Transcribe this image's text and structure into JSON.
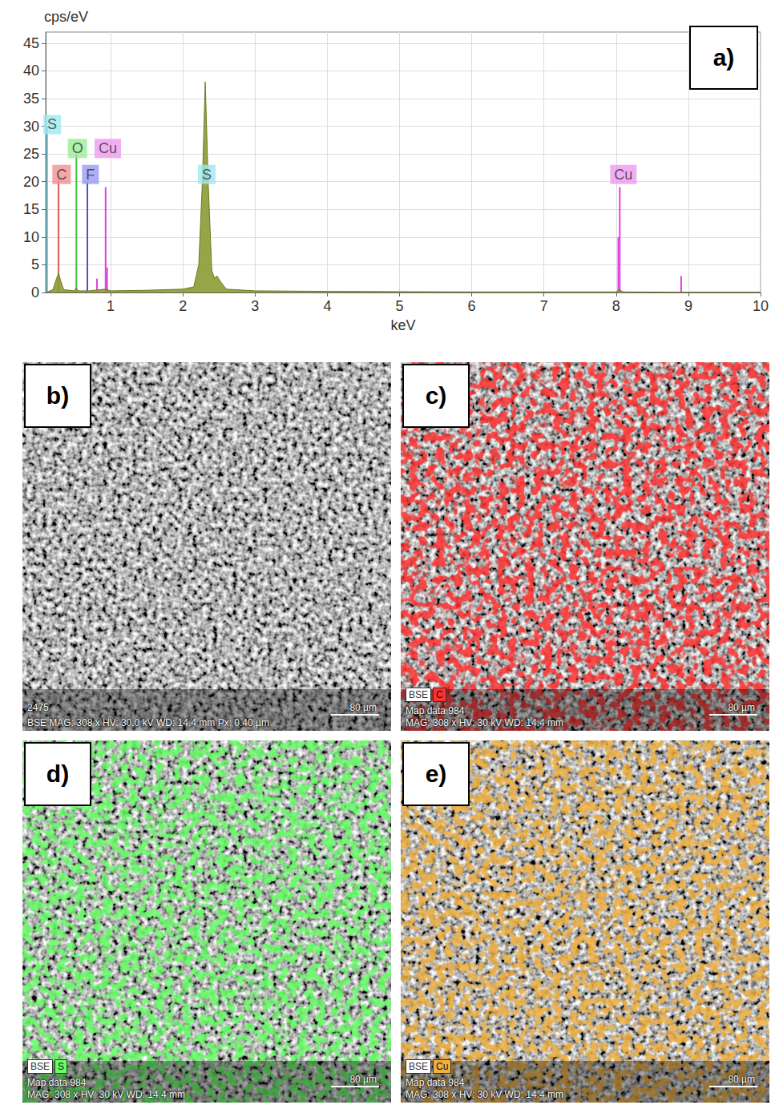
{
  "chart_data": {
    "type": "line",
    "panel_label": "a)",
    "x_label": "keV",
    "y_label": "cps/eV",
    "color": "#8c9b34",
    "x": [
      0.1,
      0.2,
      0.25,
      0.28,
      0.31,
      0.35,
      0.5,
      0.52,
      0.55,
      0.7,
      0.93,
      1.0,
      1.5,
      2.0,
      2.15,
      2.22,
      2.27,
      2.31,
      2.35,
      2.4,
      2.44,
      2.47,
      2.52,
      2.6,
      3.0,
      4.0,
      5.0,
      6.0,
      7.0,
      8.0,
      8.04,
      8.1,
      9.0,
      10.0
    ],
    "values": [
      0,
      0.5,
      2.5,
      3.5,
      2,
      0.5,
      0.3,
      0.8,
      0.3,
      0.3,
      0.6,
      0.3,
      0.4,
      0.6,
      1,
      5,
      20,
      38,
      20,
      4,
      2.5,
      3,
      2,
      0.6,
      0.3,
      0.2,
      0.15,
      0.1,
      0.1,
      0.1,
      0.5,
      0.1,
      0.05,
      0.05
    ],
    "line_markers": [
      {
        "x": 0.12,
        "y": 30,
        "color": "#5cc8d8"
      },
      {
        "x": 0.277,
        "y": 20.5,
        "color": "#e05858"
      },
      {
        "x": 0.525,
        "y": 25,
        "color": "#3cc03c"
      },
      {
        "x": 0.677,
        "y": 20,
        "color": "#5050d0"
      },
      {
        "x": 0.81,
        "y": 2.5,
        "color": "#e040e0"
      },
      {
        "x": 0.93,
        "y": 19,
        "color": "#e040e0"
      },
      {
        "x": 0.95,
        "y": 4.5,
        "color": "#e040e0"
      },
      {
        "x": 8.03,
        "y": 10,
        "color": "#e040e0"
      },
      {
        "x": 8.05,
        "y": 19,
        "color": "#e040e0"
      },
      {
        "x": 8.9,
        "y": 3,
        "color": "#e040e0"
      }
    ],
    "annotations": [
      {
        "text": "S",
        "x": 0.19,
        "y": 30.3,
        "color": "#9ee8f2"
      },
      {
        "text": "C",
        "x": 0.32,
        "y": 21.3,
        "color": "#f29090"
      },
      {
        "text": "O",
        "x": 0.54,
        "y": 26,
        "color": "#98ee98"
      },
      {
        "text": "F",
        "x": 0.72,
        "y": 21.3,
        "color": "#9a9af2"
      },
      {
        "text": "Cu",
        "x": 0.96,
        "y": 26,
        "color": "#f09af0"
      },
      {
        "text": "S",
        "x": 2.33,
        "y": 21.3,
        "color": "#9ee8f2"
      },
      {
        "text": "Cu",
        "x": 8.1,
        "y": 21.3,
        "color": "#f09af0"
      }
    ],
    "xlim": [
      0.1,
      10
    ],
    "xticks": [
      1,
      2,
      3,
      4,
      5,
      6,
      7,
      8,
      9,
      10
    ],
    "ylim": [
      0,
      47
    ],
    "yticks": [
      0,
      5,
      10,
      15,
      20,
      25,
      30,
      35,
      40,
      45
    ],
    "grid": true
  },
  "panels": [
    {
      "letter": "b)",
      "image_id": "2475",
      "scale_bar": "80 µm",
      "info": "BSE MAG: 308 x HV: 30.0 kV WD: 14.4 mm Px: 0.40 µm"
    },
    {
      "letter": "c)",
      "legend": [
        "BSE",
        "C"
      ],
      "map_color": "#ff3030",
      "map_label": "Map data 984",
      "scale_bar": "80 µm",
      "info": "MAG: 308 x HV: 30 kV WD: 14.4 mm"
    },
    {
      "letter": "d)",
      "legend": [
        "BSE",
        "S"
      ],
      "map_color": "#66ff66",
      "map_label": "Map data 984",
      "scale_bar": "80 µm",
      "info": "MAG: 308 x HV: 30 kV WD: 14.4 mm"
    },
    {
      "letter": "e)",
      "legend": [
        "BSE",
        "Cu"
      ],
      "map_color": "#f0b040",
      "map_label": "Map data 984",
      "scale_bar": "80 µm",
      "info": "MAG: 308 x HV: 30 kV WD: 14.4 mm"
    }
  ]
}
